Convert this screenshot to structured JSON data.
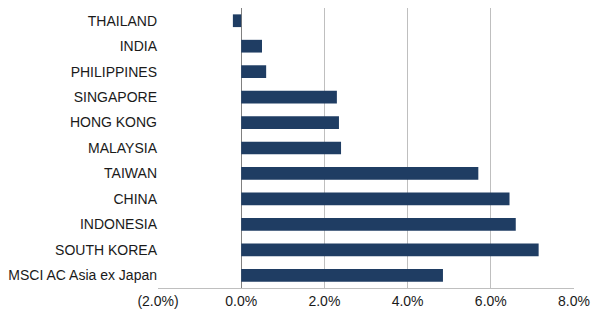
{
  "chart_data": {
    "type": "bar",
    "orientation": "horizontal",
    "categories": [
      "THAILAND",
      "INDIA",
      "PHILIPPINES",
      "SINGAPORE",
      "HONG KONG",
      "MALAYSIA",
      "TAIWAN",
      "CHINA",
      "INDONESIA",
      "SOUTH KOREA",
      "MSCI AC Asia ex Japan"
    ],
    "values": [
      -0.2,
      0.5,
      0.6,
      2.3,
      2.35,
      2.4,
      5.7,
      6.45,
      6.6,
      7.15,
      4.85
    ],
    "color": "#1f3d63",
    "xlim": [
      -2,
      8
    ],
    "xticks": [
      {
        "value": -2,
        "label": "(2.0%)"
      },
      {
        "value": 0,
        "label": "0.0%"
      },
      {
        "value": 2,
        "label": "2.0%"
      },
      {
        "value": 4,
        "label": "4.0%"
      },
      {
        "value": 6,
        "label": "6.0%"
      },
      {
        "value": 8,
        "label": "8.0%"
      }
    ],
    "grid": true
  }
}
